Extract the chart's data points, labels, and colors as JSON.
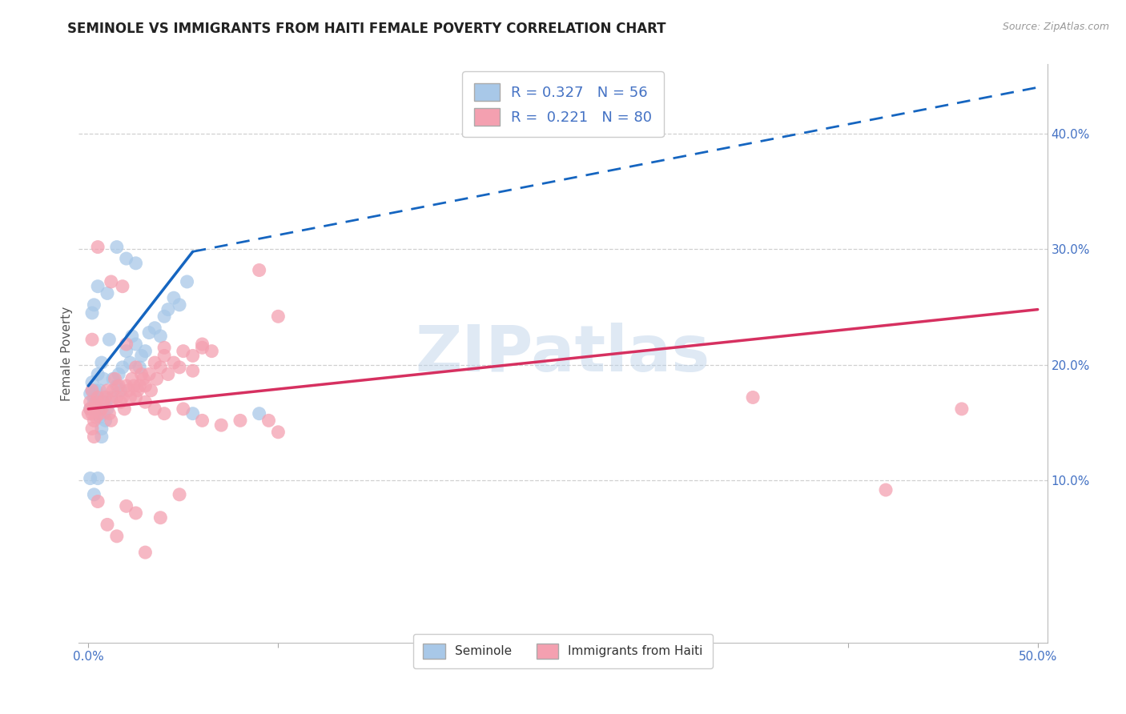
{
  "title": "SEMINOLE VS IMMIGRANTS FROM HAITI FEMALE POVERTY CORRELATION CHART",
  "source": "Source: ZipAtlas.com",
  "ylabel": "Female Poverty",
  "right_yticks": [
    "40.0%",
    "30.0%",
    "20.0%",
    "10.0%"
  ],
  "right_ytick_vals": [
    0.4,
    0.3,
    0.2,
    0.1
  ],
  "xlim": [
    -0.005,
    0.505
  ],
  "ylim": [
    -0.04,
    0.46
  ],
  "watermark": "ZIPatlas",
  "blue_color": "#a8c8e8",
  "pink_color": "#f4a0b0",
  "seminole_scatter": [
    [
      0.001,
      0.175
    ],
    [
      0.002,
      0.185
    ],
    [
      0.003,
      0.172
    ],
    [
      0.004,
      0.162
    ],
    [
      0.005,
      0.192
    ],
    [
      0.006,
      0.178
    ],
    [
      0.007,
      0.202
    ],
    [
      0.008,
      0.188
    ],
    [
      0.009,
      0.168
    ],
    [
      0.01,
      0.162
    ],
    [
      0.011,
      0.222
    ],
    [
      0.012,
      0.172
    ],
    [
      0.013,
      0.188
    ],
    [
      0.015,
      0.182
    ],
    [
      0.016,
      0.192
    ],
    [
      0.017,
      0.178
    ],
    [
      0.018,
      0.198
    ],
    [
      0.02,
      0.212
    ],
    [
      0.022,
      0.202
    ],
    [
      0.023,
      0.225
    ],
    [
      0.025,
      0.218
    ],
    [
      0.027,
      0.198
    ],
    [
      0.028,
      0.208
    ],
    [
      0.03,
      0.212
    ],
    [
      0.032,
      0.228
    ],
    [
      0.035,
      0.232
    ],
    [
      0.038,
      0.225
    ],
    [
      0.04,
      0.242
    ],
    [
      0.042,
      0.248
    ],
    [
      0.045,
      0.258
    ],
    [
      0.048,
      0.252
    ],
    [
      0.052,
      0.272
    ],
    [
      0.01,
      0.262
    ],
    [
      0.015,
      0.302
    ],
    [
      0.02,
      0.292
    ],
    [
      0.025,
      0.288
    ],
    [
      0.002,
      0.178
    ],
    [
      0.003,
      0.168
    ],
    [
      0.004,
      0.168
    ],
    [
      0.005,
      0.172
    ],
    [
      0.001,
      0.162
    ],
    [
      0.008,
      0.158
    ],
    [
      0.004,
      0.178
    ],
    [
      0.006,
      0.155
    ],
    [
      0.007,
      0.145
    ],
    [
      0.009,
      0.152
    ],
    [
      0.002,
      0.245
    ],
    [
      0.003,
      0.252
    ],
    [
      0.005,
      0.268
    ],
    [
      0.001,
      0.102
    ],
    [
      0.003,
      0.088
    ],
    [
      0.007,
      0.138
    ],
    [
      0.005,
      0.102
    ],
    [
      0.055,
      0.158
    ],
    [
      0.09,
      0.158
    ]
  ],
  "haiti_scatter": [
    [
      0.001,
      0.162
    ],
    [
      0.002,
      0.158
    ],
    [
      0.003,
      0.152
    ],
    [
      0.004,
      0.168
    ],
    [
      0.005,
      0.172
    ],
    [
      0.006,
      0.158
    ],
    [
      0.007,
      0.162
    ],
    [
      0.008,
      0.168
    ],
    [
      0.009,
      0.172
    ],
    [
      0.01,
      0.178
    ],
    [
      0.011,
      0.158
    ],
    [
      0.012,
      0.152
    ],
    [
      0.013,
      0.178
    ],
    [
      0.014,
      0.188
    ],
    [
      0.015,
      0.172
    ],
    [
      0.016,
      0.182
    ],
    [
      0.017,
      0.168
    ],
    [
      0.018,
      0.172
    ],
    [
      0.019,
      0.162
    ],
    [
      0.02,
      0.182
    ],
    [
      0.021,
      0.178
    ],
    [
      0.022,
      0.172
    ],
    [
      0.023,
      0.188
    ],
    [
      0.024,
      0.182
    ],
    [
      0.025,
      0.172
    ],
    [
      0.026,
      0.178
    ],
    [
      0.027,
      0.182
    ],
    [
      0.028,
      0.192
    ],
    [
      0.029,
      0.188
    ],
    [
      0.03,
      0.182
    ],
    [
      0.032,
      0.192
    ],
    [
      0.033,
      0.178
    ],
    [
      0.035,
      0.202
    ],
    [
      0.036,
      0.188
    ],
    [
      0.038,
      0.198
    ],
    [
      0.04,
      0.208
    ],
    [
      0.042,
      0.192
    ],
    [
      0.045,
      0.202
    ],
    [
      0.048,
      0.198
    ],
    [
      0.05,
      0.212
    ],
    [
      0.055,
      0.208
    ],
    [
      0.06,
      0.218
    ],
    [
      0.065,
      0.212
    ],
    [
      0.09,
      0.282
    ],
    [
      0.46,
      0.162
    ],
    [
      0.005,
      0.302
    ],
    [
      0.018,
      0.268
    ],
    [
      0.012,
      0.272
    ],
    [
      0.04,
      0.215
    ],
    [
      0.055,
      0.195
    ],
    [
      0.06,
      0.215
    ],
    [
      0.002,
      0.145
    ],
    [
      0.003,
      0.138
    ],
    [
      0.005,
      0.082
    ],
    [
      0.01,
      0.062
    ],
    [
      0.015,
      0.052
    ],
    [
      0.02,
      0.078
    ],
    [
      0.025,
      0.072
    ],
    [
      0.03,
      0.038
    ],
    [
      0.038,
      0.068
    ],
    [
      0.048,
      0.088
    ],
    [
      0.002,
      0.222
    ],
    [
      0.012,
      0.168
    ],
    [
      0.02,
      0.218
    ],
    [
      0.025,
      0.198
    ],
    [
      0.03,
      0.168
    ],
    [
      0.035,
      0.162
    ],
    [
      0.04,
      0.158
    ],
    [
      0.05,
      0.162
    ],
    [
      0.06,
      0.152
    ],
    [
      0.07,
      0.148
    ],
    [
      0.08,
      0.152
    ],
    [
      0.095,
      0.152
    ],
    [
      0.1,
      0.142
    ],
    [
      0.1,
      0.242
    ],
    [
      0.35,
      0.172
    ],
    [
      0.42,
      0.092
    ],
    [
      0.0,
      0.158
    ],
    [
      0.001,
      0.168
    ],
    [
      0.002,
      0.178
    ],
    [
      0.003,
      0.162
    ],
    [
      0.004,
      0.155
    ]
  ],
  "seminole_line_solid": [
    [
      0.0,
      0.182
    ],
    [
      0.055,
      0.298
    ]
  ],
  "seminole_line_dashed": [
    [
      0.055,
      0.298
    ],
    [
      0.5,
      0.44
    ]
  ],
  "haiti_line": [
    [
      0.0,
      0.162
    ],
    [
      0.5,
      0.248
    ]
  ],
  "blue_line_color": "#1565c0",
  "pink_line_color": "#d63060",
  "title_color": "#222222",
  "axis_color": "#4472c4",
  "grid_color": "#d0d0d0",
  "bottom_legend_labels": [
    "Seminole",
    "Immigrants from Haiti"
  ]
}
